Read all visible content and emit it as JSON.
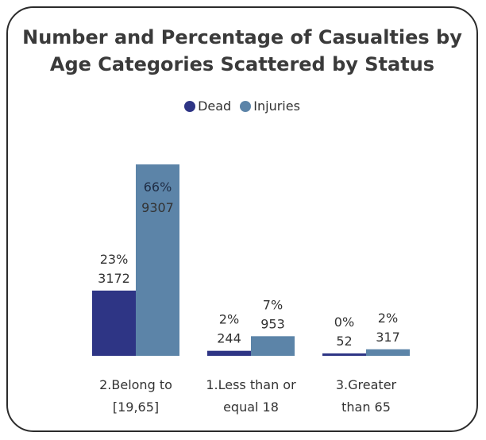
{
  "chart_data": {
    "type": "bar",
    "title_lines": [
      "Number and Percentage of Casualties by",
      "Age Categories Scattered by Status"
    ],
    "categories": [
      [
        "2.Belong to",
        "[19,65]"
      ],
      [
        "1.Less than or",
        "equal 18"
      ],
      [
        "3.Greater",
        "than 65"
      ]
    ],
    "series": [
      {
        "name": "Dead",
        "color": "#2e3585",
        "values": [
          3172,
          244,
          52
        ],
        "percents": [
          "23%",
          "2%",
          "0%"
        ]
      },
      {
        "name": "Injuries",
        "color": "#5c84a8",
        "values": [
          9307,
          953,
          317
        ],
        "percents": [
          "66%",
          "7%",
          "2%"
        ]
      }
    ],
    "ylim": [
      0,
      9307
    ],
    "legend_position": "top-center",
    "grid": false
  }
}
